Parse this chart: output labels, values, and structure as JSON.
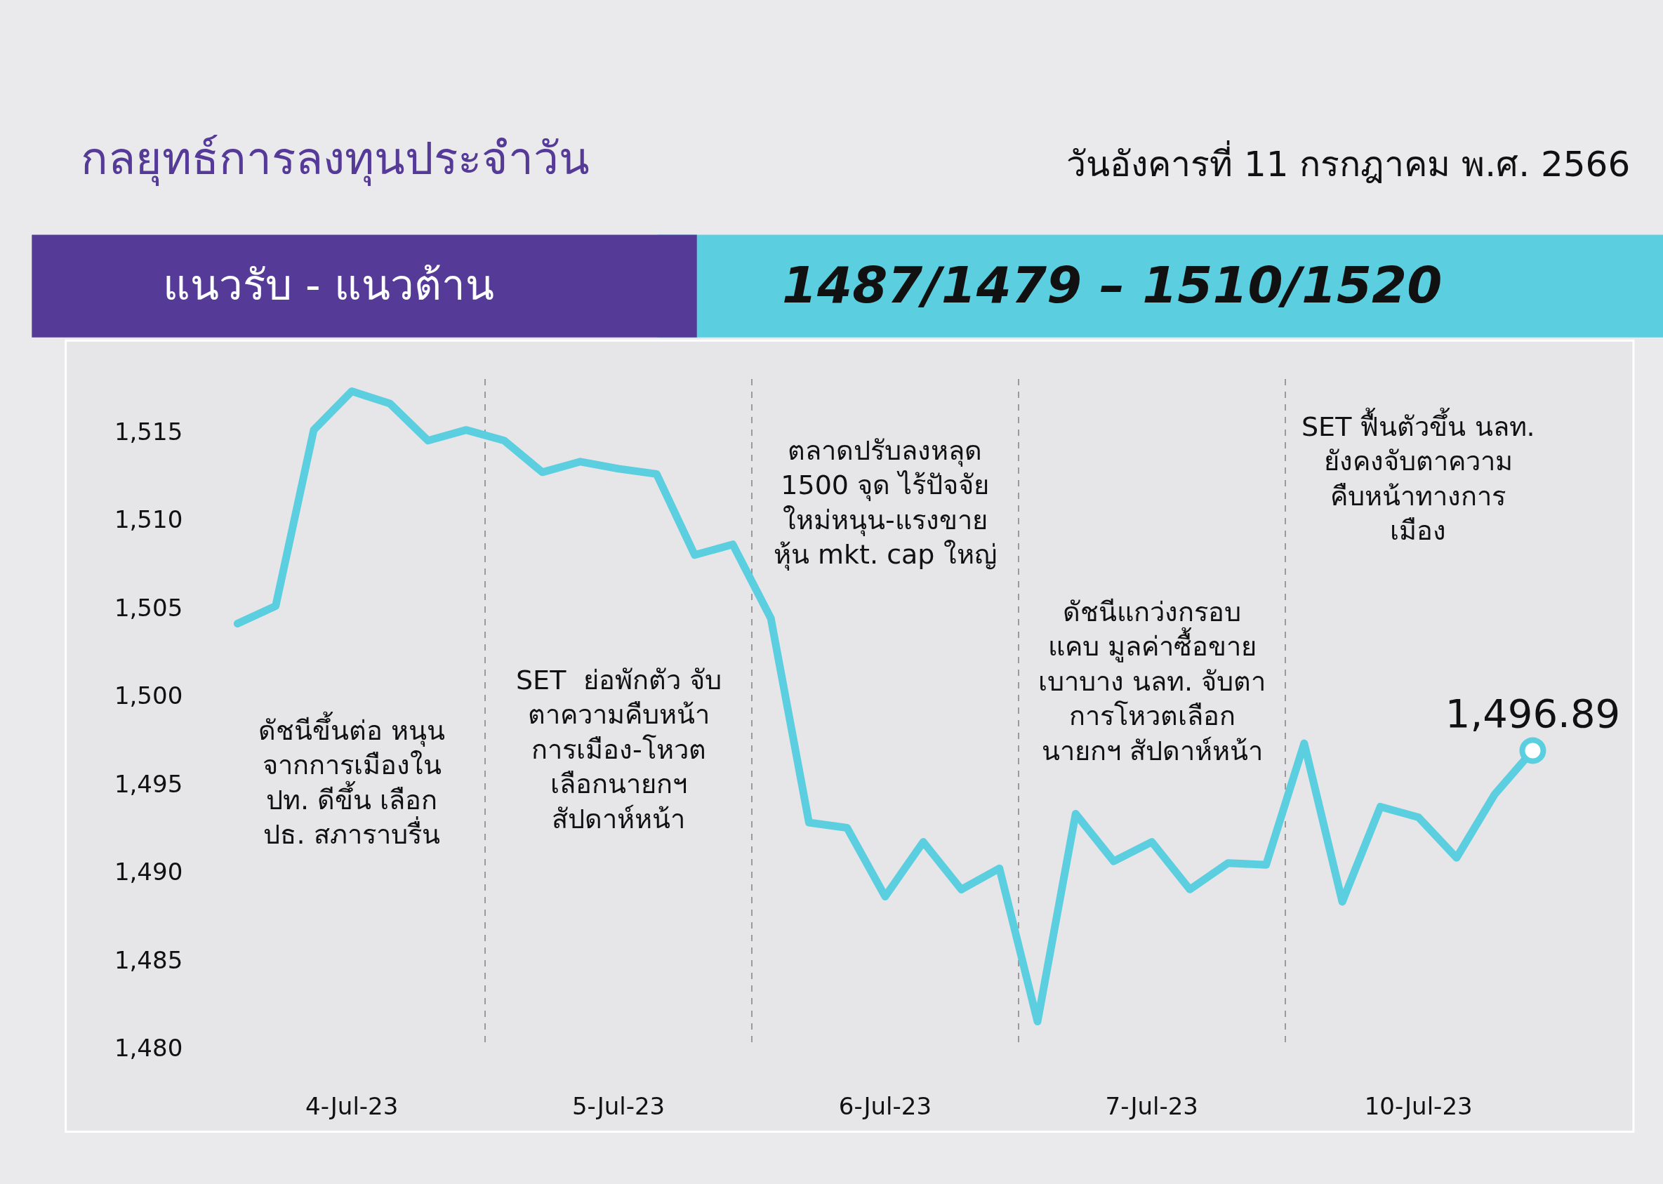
{
  "chart_data": {
    "type": "line",
    "title": "กลยุทธ์การลงทุนประจำวัน",
    "subtitle": "วันอังคารที่ 11 กรกฎาคม พ.ศ. 2566",
    "categories": [
      null,
      null,
      null,
      "4-Jul-23",
      null,
      null,
      null,
      null,
      null,
      null,
      "5-Jul-23",
      null,
      null,
      null,
      null,
      null,
      null,
      "6-Jul-23",
      null,
      null,
      null,
      null,
      null,
      null,
      "7-Jul-23",
      null,
      null,
      null,
      null,
      null,
      null,
      "10-Jul-23",
      null,
      null,
      null
    ],
    "series": [
      {
        "color": "#5bcfdf",
        "values": [
          1504.1,
          1505.1,
          1515.1,
          1517.3,
          1516.6,
          1514.5,
          1515.1,
          1514.5,
          1512.7,
          1513.3,
          1512.9,
          1512.6,
          1508.0,
          1508.6,
          1504.4,
          1492.8,
          1492.5,
          1488.6,
          1491.7,
          1489.0,
          1490.2,
          1481.5,
          1493.3,
          1490.6,
          1491.7,
          1489.0,
          1490.5,
          1490.4,
          1497.3,
          1488.3,
          1493.7,
          1493.1,
          1490.8,
          1494.4,
          1496.89
        ],
        "value_labels": [
          null,
          null,
          null,
          null,
          null,
          null,
          null,
          null,
          null,
          null,
          null,
          null,
          null,
          null,
          null,
          null,
          null,
          null,
          null,
          null,
          null,
          null,
          null,
          null,
          null,
          null,
          null,
          null,
          null,
          null,
          null,
          null,
          null,
          null,
          "1,496.89"
        ]
      }
    ],
    "ylim": [
      1480,
      1518
    ],
    "yticks": [
      {
        "value": 1480,
        "label": "1,480"
      },
      {
        "value": 1485,
        "label": "1,485"
      },
      {
        "value": 1490,
        "label": "1,490"
      },
      {
        "value": 1495,
        "label": "1,495"
      },
      {
        "value": 1500,
        "label": "1,500"
      },
      {
        "value": 1505,
        "label": "1,505"
      },
      {
        "value": 1510,
        "label": "1,510"
      },
      {
        "value": 1515,
        "label": "1,515"
      }
    ],
    "grid": "x",
    "annotations": [
      "ดัชนีขึ้นต่อ หนุน\nจากการเมืองใน\nปท. ดีขึ้น เลือก\nปธ. สภาราบรื่น",
      "SET  ย่อพักตัว จับ\nตาความคืบหน้า\nการเมือง-โหวต\nเลือกนายกฯ\nสัปดาห์หน้า",
      "ตลาดปรับลงหลุด\n1500 จุด ไร้ปัจจัย\nใหม่หนุน-แรงขาย\nหุ้น mkt. cap ใหญ่",
      "ดัชนีแกว่งกรอบ\nแคบ มูลค่าซื้อขาย\nเบาบาง นลท. จับตา\nการโหวตเลือก\nนายกฯ สัปดาห์หน้า",
      "SET ฟื้นตัวขึ้น นลท.\nยังคงจับตาความ\nคืบหน้าทางการ\nเมือง",
      "แนวรับ - แนวต้าน",
      "1487/1479 – 1510/1520"
    ]
  }
}
